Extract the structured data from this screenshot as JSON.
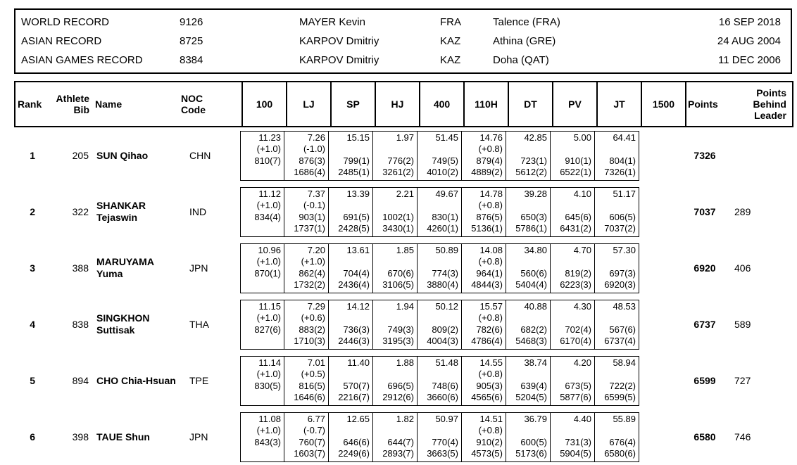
{
  "records": {
    "rows": [
      {
        "label": "WORLD RECORD",
        "points": "9126",
        "athlete": "MAYER Kevin",
        "noc": "FRA",
        "venue": "Talence (FRA)",
        "date": "16 SEP 2018"
      },
      {
        "label": "ASIAN RECORD",
        "points": "8725",
        "athlete": "KARPOV Dmitriy",
        "noc": "KAZ",
        "venue": "Athina (GRE)",
        "date": "24 AUG 2004"
      },
      {
        "label": "ASIAN GAMES RECORD",
        "points": "8384",
        "athlete": "KARPOV Dmitriy",
        "noc": "KAZ",
        "venue": "Doha (QAT)",
        "date": "11 DEC 2006"
      }
    ]
  },
  "table": {
    "headers": {
      "rank": "Rank",
      "bib": "Athlete\nBib",
      "name": "Name",
      "noc": "NOC\nCode",
      "events": [
        "100",
        "LJ",
        "SP",
        "HJ",
        "400",
        "110H",
        "DT",
        "PV",
        "JT",
        "1500"
      ],
      "points": "Points",
      "behind": "Points\nBehind\nLeader"
    },
    "rows": [
      {
        "rank": "1",
        "bib": "205",
        "name": "SUN Qihao",
        "noc": "CHN",
        "events": [
          {
            "mark": "11.23",
            "wind": "(+1.0)",
            "pts": "810(7)",
            "cum": ""
          },
          {
            "mark": "7.26",
            "wind": "(-1.0)",
            "pts": "876(3)",
            "cum": "1686(4)"
          },
          {
            "mark": "15.15",
            "wind": "",
            "pts": "799(1)",
            "cum": "2485(1)"
          },
          {
            "mark": "1.97",
            "wind": "",
            "pts": "776(2)",
            "cum": "3261(2)"
          },
          {
            "mark": "51.45",
            "wind": "",
            "pts": "749(5)",
            "cum": "4010(2)"
          },
          {
            "mark": "14.76",
            "wind": "(+0.8)",
            "pts": "879(4)",
            "cum": "4889(2)"
          },
          {
            "mark": "42.85",
            "wind": "",
            "pts": "723(1)",
            "cum": "5612(2)"
          },
          {
            "mark": "5.00",
            "wind": "",
            "pts": "910(1)",
            "cum": "6522(1)"
          },
          {
            "mark": "64.41",
            "wind": "",
            "pts": "804(1)",
            "cum": "7326(1)"
          },
          null
        ],
        "points": "7326",
        "behind": ""
      },
      {
        "rank": "2",
        "bib": "322",
        "name": "SHANKAR Tejaswin",
        "noc": "IND",
        "events": [
          {
            "mark": "11.12",
            "wind": "(+1.0)",
            "pts": "834(4)",
            "cum": ""
          },
          {
            "mark": "7.37",
            "wind": "(-0.1)",
            "pts": "903(1)",
            "cum": "1737(1)"
          },
          {
            "mark": "13.39",
            "wind": "",
            "pts": "691(5)",
            "cum": "2428(5)"
          },
          {
            "mark": "2.21",
            "wind": "",
            "pts": "1002(1)",
            "cum": "3430(1)"
          },
          {
            "mark": "49.67",
            "wind": "",
            "pts": "830(1)",
            "cum": "4260(1)"
          },
          {
            "mark": "14.78",
            "wind": "(+0.8)",
            "pts": "876(5)",
            "cum": "5136(1)"
          },
          {
            "mark": "39.28",
            "wind": "",
            "pts": "650(3)",
            "cum": "5786(1)"
          },
          {
            "mark": "4.10",
            "wind": "",
            "pts": "645(6)",
            "cum": "6431(2)"
          },
          {
            "mark": "51.17",
            "wind": "",
            "pts": "606(5)",
            "cum": "7037(2)"
          },
          null
        ],
        "points": "7037",
        "behind": "289"
      },
      {
        "rank": "3",
        "bib": "388",
        "name": "MARUYAMA Yuma",
        "noc": "JPN",
        "events": [
          {
            "mark": "10.96",
            "wind": "(+1.0)",
            "pts": "870(1)",
            "cum": ""
          },
          {
            "mark": "7.20",
            "wind": "(+1.0)",
            "pts": "862(4)",
            "cum": "1732(2)"
          },
          {
            "mark": "13.61",
            "wind": "",
            "pts": "704(4)",
            "cum": "2436(4)"
          },
          {
            "mark": "1.85",
            "wind": "",
            "pts": "670(6)",
            "cum": "3106(5)"
          },
          {
            "mark": "50.89",
            "wind": "",
            "pts": "774(3)",
            "cum": "3880(4)"
          },
          {
            "mark": "14.08",
            "wind": "(+0.8)",
            "pts": "964(1)",
            "cum": "4844(3)"
          },
          {
            "mark": "34.80",
            "wind": "",
            "pts": "560(6)",
            "cum": "5404(4)"
          },
          {
            "mark": "4.70",
            "wind": "",
            "pts": "819(2)",
            "cum": "6223(3)"
          },
          {
            "mark": "57.30",
            "wind": "",
            "pts": "697(3)",
            "cum": "6920(3)"
          },
          null
        ],
        "points": "6920",
        "behind": "406"
      },
      {
        "rank": "4",
        "bib": "838",
        "name": "SINGKHON Suttisak",
        "noc": "THA",
        "events": [
          {
            "mark": "11.15",
            "wind": "(+1.0)",
            "pts": "827(6)",
            "cum": ""
          },
          {
            "mark": "7.29",
            "wind": "(+0.6)",
            "pts": "883(2)",
            "cum": "1710(3)"
          },
          {
            "mark": "14.12",
            "wind": "",
            "pts": "736(3)",
            "cum": "2446(3)"
          },
          {
            "mark": "1.94",
            "wind": "",
            "pts": "749(3)",
            "cum": "3195(3)"
          },
          {
            "mark": "50.12",
            "wind": "",
            "pts": "809(2)",
            "cum": "4004(3)"
          },
          {
            "mark": "15.57",
            "wind": "(+0.8)",
            "pts": "782(6)",
            "cum": "4786(4)"
          },
          {
            "mark": "40.88",
            "wind": "",
            "pts": "682(2)",
            "cum": "5468(3)"
          },
          {
            "mark": "4.30",
            "wind": "",
            "pts": "702(4)",
            "cum": "6170(4)"
          },
          {
            "mark": "48.53",
            "wind": "",
            "pts": "567(6)",
            "cum": "6737(4)"
          },
          null
        ],
        "points": "6737",
        "behind": "589"
      },
      {
        "rank": "5",
        "bib": "894",
        "name": "CHO Chia-Hsuan",
        "noc": "TPE",
        "events": [
          {
            "mark": "11.14",
            "wind": "(+1.0)",
            "pts": "830(5)",
            "cum": ""
          },
          {
            "mark": "7.01",
            "wind": "(+0.5)",
            "pts": "816(5)",
            "cum": "1646(6)"
          },
          {
            "mark": "11.40",
            "wind": "",
            "pts": "570(7)",
            "cum": "2216(7)"
          },
          {
            "mark": "1.88",
            "wind": "",
            "pts": "696(5)",
            "cum": "2912(6)"
          },
          {
            "mark": "51.48",
            "wind": "",
            "pts": "748(6)",
            "cum": "3660(6)"
          },
          {
            "mark": "14.55",
            "wind": "(+0.8)",
            "pts": "905(3)",
            "cum": "4565(6)"
          },
          {
            "mark": "38.74",
            "wind": "",
            "pts": "639(4)",
            "cum": "5204(5)"
          },
          {
            "mark": "4.20",
            "wind": "",
            "pts": "673(5)",
            "cum": "5877(6)"
          },
          {
            "mark": "58.94",
            "wind": "",
            "pts": "722(2)",
            "cum": "6599(5)"
          },
          null
        ],
        "points": "6599",
        "behind": "727"
      },
      {
        "rank": "6",
        "bib": "398",
        "name": "TAUE Shun",
        "noc": "JPN",
        "events": [
          {
            "mark": "11.08",
            "wind": "(+1.0)",
            "pts": "843(3)",
            "cum": ""
          },
          {
            "mark": "6.77",
            "wind": "(-0.7)",
            "pts": "760(7)",
            "cum": "1603(7)"
          },
          {
            "mark": "12.65",
            "wind": "",
            "pts": "646(6)",
            "cum": "2249(6)"
          },
          {
            "mark": "1.82",
            "wind": "",
            "pts": "644(7)",
            "cum": "2893(7)"
          },
          {
            "mark": "50.97",
            "wind": "",
            "pts": "770(4)",
            "cum": "3663(5)"
          },
          {
            "mark": "14.51",
            "wind": "(+0.8)",
            "pts": "910(2)",
            "cum": "4573(5)"
          },
          {
            "mark": "36.79",
            "wind": "",
            "pts": "600(5)",
            "cum": "5173(6)"
          },
          {
            "mark": "4.40",
            "wind": "",
            "pts": "731(3)",
            "cum": "5904(5)"
          },
          {
            "mark": "55.89",
            "wind": "",
            "pts": "676(4)",
            "cum": "6580(6)"
          },
          null
        ],
        "points": "6580",
        "behind": "746"
      }
    ]
  }
}
